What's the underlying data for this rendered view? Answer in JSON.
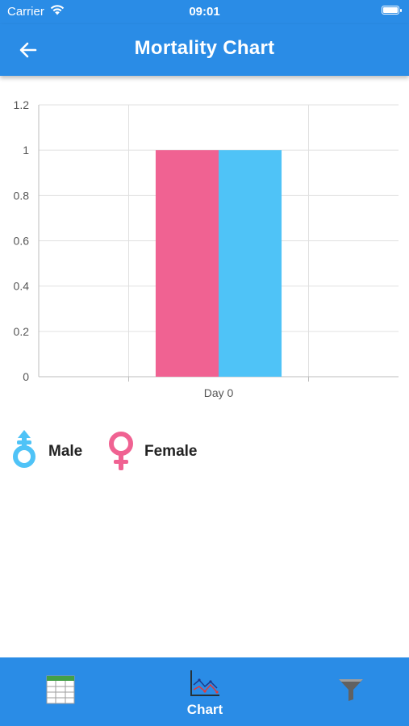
{
  "status_bar": {
    "carrier": "Carrier",
    "time": "09:01"
  },
  "app_bar": {
    "title": "Mortality Chart",
    "back_icon": "arrow-left-icon"
  },
  "chart_data": {
    "type": "bar",
    "categories": [
      "Day 0"
    ],
    "series": [
      {
        "name": "Female",
        "values": [
          1
        ],
        "color": "#f06292"
      },
      {
        "name": "Male",
        "values": [
          1
        ],
        "color": "#4fc3f7"
      }
    ],
    "ylim": [
      0,
      1.2
    ],
    "yticks": [
      0,
      0.2,
      0.4,
      0.6,
      0.8,
      1,
      1.2
    ],
    "ytick_labels": [
      "0",
      "0.2",
      "0.4",
      "0.6",
      "0.8",
      "1",
      "1.2"
    ],
    "grid": true,
    "title": "",
    "xlabel": "",
    "ylabel": ""
  },
  "legend": {
    "male": {
      "label": "Male",
      "icon": "male-symbol-icon",
      "color": "#4fc3f7"
    },
    "female": {
      "label": "Female",
      "icon": "female-symbol-icon",
      "color": "#f06292"
    }
  },
  "bottom_nav": {
    "items": [
      {
        "icon": "table-icon",
        "label": ""
      },
      {
        "icon": "line-chart-icon",
        "label": "Chart",
        "active": true
      },
      {
        "icon": "filter-icon",
        "label": ""
      }
    ]
  },
  "colors": {
    "primary": "#2a8ce6",
    "grid": "#e0e0e0",
    "axis": "#bdbdbd"
  }
}
